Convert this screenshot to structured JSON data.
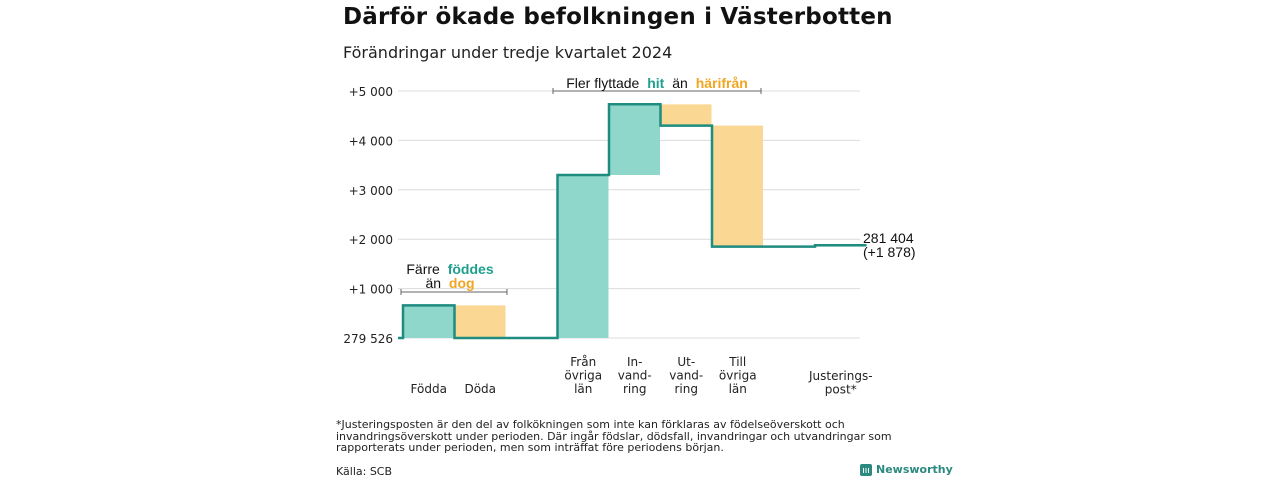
{
  "title": "Därför ökade befolkningen i Västerbotten",
  "subtitle": "Förändringar under tredje kvartalet 2024",
  "chart_data": {
    "type": "waterfall",
    "base_value": 279526,
    "base_label": "279 526",
    "y_tick_labels": [
      "+1 000",
      "+2 000",
      "+3 000",
      "+4 000",
      "+5 000"
    ],
    "y_tick_values": [
      1000,
      2000,
      3000,
      4000,
      5000
    ],
    "ylim": [
      0,
      5300
    ],
    "steps": [
      {
        "label": [
          "Födda"
        ],
        "change": 660,
        "kind": "in"
      },
      {
        "label": [
          "Döda"
        ],
        "change": -660,
        "kind": "out"
      },
      {
        "label": [
          "Från",
          "övriga",
          "län"
        ],
        "change": 3300,
        "kind": "in"
      },
      {
        "label": [
          "In-",
          "vand-",
          "ring"
        ],
        "change": 1430,
        "kind": "in"
      },
      {
        "label": [
          "Ut-",
          "vand-",
          "ring"
        ],
        "change": -430,
        "kind": "out"
      },
      {
        "label": [
          "Till",
          "övriga",
          "län"
        ],
        "change": -2450,
        "kind": "out"
      },
      {
        "label": [
          "Justerings-",
          "post*"
        ],
        "change": 28,
        "kind": "in"
      }
    ],
    "end_label": "281 404",
    "end_change_label": "(+1 878)",
    "annotations": {
      "births": {
        "line1": "Färre",
        "line1_hl": "föddes",
        "line2": "än",
        "line2_hl": "dog"
      },
      "migration": {
        "pre": "Fler flyttade",
        "hl1": "hit",
        "mid": "än",
        "hl2": "härifrån"
      }
    },
    "colors": {
      "in": "#8fd6cb",
      "out": "#fad893",
      "line": "#1f8c80",
      "in_text": "#1fa08f",
      "out_text": "#f0a621"
    }
  },
  "footnote": "*Justeringsposten är den del av folkökningen som inte kan förklaras av födelseöverskott och invandringsöverskott under perioden. Där ingår födslar, dödsfall, invandringar och utvandringar som rapporterats under perioden, men som inträffat före periodens början.",
  "source": "Källa: SCB",
  "brand": "Newsworthy"
}
